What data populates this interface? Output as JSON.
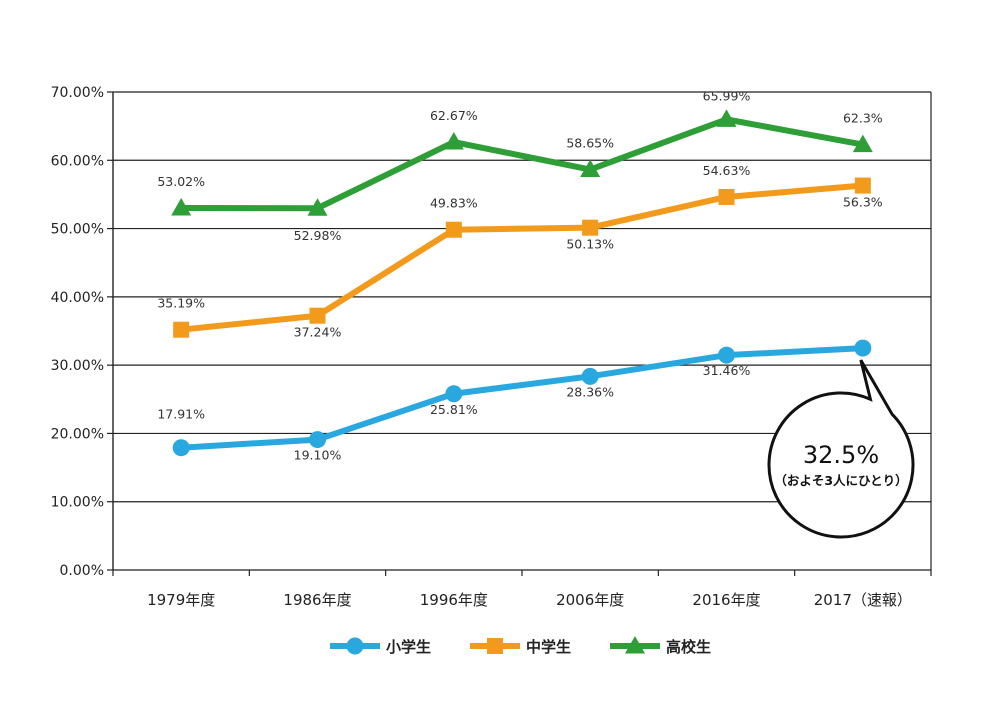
{
  "chart_data": {
    "type": "line",
    "categories": [
      "1979年度",
      "1986年度",
      "1996年度",
      "2006年度",
      "2016年度",
      "2017（速報）"
    ],
    "ylim": [
      0,
      70
    ],
    "y_ticks": [
      "0.00%",
      "10.00%",
      "20.00%",
      "30.00%",
      "40.00%",
      "50.00%",
      "60.00%",
      "70.00%"
    ],
    "grid": true,
    "legend_position": "bottom",
    "series": [
      {
        "name": "小学生",
        "marker": "circle",
        "color": "#29a8e0",
        "values": [
          17.91,
          19.1,
          25.81,
          28.36,
          31.46,
          32.5
        ],
        "labels": [
          "17.91%",
          "19.10%",
          "25.81%",
          "28.36%",
          "31.46%",
          ""
        ]
      },
      {
        "name": "中学生",
        "marker": "square",
        "color": "#f29a1b",
        "values": [
          35.19,
          37.24,
          49.83,
          50.13,
          54.63,
          56.3
        ],
        "labels": [
          "35.19%",
          "37.24%",
          "49.83%",
          "50.13%",
          "54.63%",
          "56.3%"
        ]
      },
      {
        "name": "高校生",
        "marker": "triangle",
        "color": "#2e9e36",
        "values": [
          53.02,
          52.98,
          62.67,
          58.65,
          65.99,
          62.3
        ],
        "labels": [
          "53.02%",
          "52.98%",
          "62.67%",
          "58.65%",
          "65.99%",
          "62.3%"
        ]
      }
    ],
    "annotation": {
      "main": "32.5%",
      "sub": "（およそ3人にひとり）"
    }
  }
}
